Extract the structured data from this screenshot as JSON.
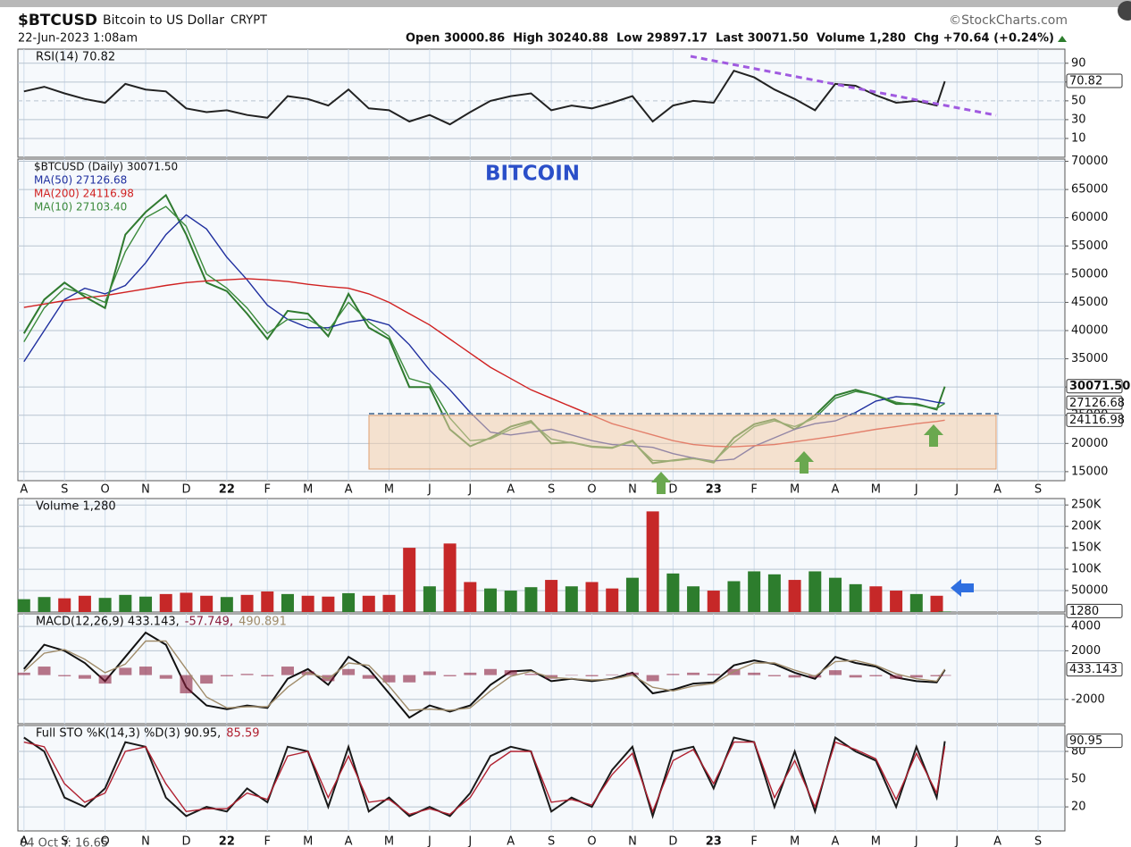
{
  "header": {
    "symbol": "$BTCUSD",
    "name": "Bitcoin to US Dollar",
    "exchange": "CRYPT",
    "brand": "©StockCharts.com",
    "date": "22-Jun-2023 1:08am",
    "quote": "Open 30000.86  High 30240.88  Low 29897.17  Last 30071.50  Volume 1,280  Chg +70.64 (+0.24%)",
    "readout": "04 Oct Y: 16.65"
  },
  "chart_data": [
    {
      "type": "line",
      "xlim": [
        -0.15,
        25.66
      ],
      "ylim": [
        -10,
        105
      ],
      "yticks": [
        10,
        30,
        50,
        70,
        90
      ],
      "x": [
        0,
        0.5,
        1,
        1.5,
        2,
        2.5,
        3,
        3.5,
        4,
        4.5,
        5,
        5.5,
        6,
        6.5,
        7,
        7.5,
        8,
        8.5,
        9,
        9.5,
        10,
        10.5,
        11,
        11.5,
        12,
        12.5,
        13,
        13.5,
        14,
        14.5,
        15,
        15.5,
        16,
        16.5,
        17,
        17.5,
        18,
        18.5,
        19,
        19.5,
        20,
        20.5,
        21,
        21.5,
        22,
        22.5,
        22.7
      ],
      "series": [
        {
          "name": "RSI(14) 70.82",
          "color": "#222222",
          "tag": true,
          "values": [
            60,
            65,
            58,
            52,
            48,
            68,
            62,
            60,
            42,
            38,
            40,
            35,
            32,
            55,
            52,
            45,
            62,
            42,
            40,
            28,
            35,
            25,
            38,
            50,
            55,
            58,
            40,
            45,
            42,
            48,
            55,
            28,
            45,
            50,
            48,
            82,
            75,
            62,
            52,
            40,
            68,
            66,
            56,
            48,
            50,
            45,
            70.82
          ]
        }
      ]
    },
    {
      "type": "line",
      "xlim": [
        -0.15,
        25.66
      ],
      "ylim": [
        13400,
        70400
      ],
      "yticks": [
        15000,
        20000,
        25000,
        30000,
        35000,
        40000,
        45000,
        50000,
        55000,
        60000,
        65000,
        70000
      ],
      "xticks": [
        {
          "value": 0,
          "label": "A"
        },
        {
          "value": 1,
          "label": "S"
        },
        {
          "value": 2,
          "label": "O"
        },
        {
          "value": 3,
          "label": "N"
        },
        {
          "value": 4,
          "label": "D"
        },
        {
          "value": 5,
          "label": "22"
        },
        {
          "value": 6,
          "label": "F"
        },
        {
          "value": 7,
          "label": "M"
        },
        {
          "value": 8,
          "label": "A"
        },
        {
          "value": 9,
          "label": "M"
        },
        {
          "value": 10,
          "label": "J"
        },
        {
          "value": 11,
          "label": "J"
        },
        {
          "value": 12,
          "label": "A"
        },
        {
          "value": 13,
          "label": "S"
        },
        {
          "value": 14,
          "label": "O"
        },
        {
          "value": 15,
          "label": "N"
        },
        {
          "value": 16,
          "label": "D"
        },
        {
          "value": 17,
          "label": "23"
        },
        {
          "value": 18,
          "label": "F"
        },
        {
          "value": 19,
          "label": "M"
        },
        {
          "value": 20,
          "label": "A"
        },
        {
          "value": 21,
          "label": "M"
        },
        {
          "value": 22,
          "label": "J"
        },
        {
          "value": 23,
          "label": "J"
        },
        {
          "value": 24,
          "label": "A"
        },
        {
          "value": 25,
          "label": "S"
        }
      ],
      "annotations": [
        {
          "text": "BITCOIN"
        }
      ],
      "x": [
        0,
        0.5,
        1,
        1.5,
        2,
        2.5,
        3,
        3.5,
        4,
        4.5,
        5,
        5.5,
        6,
        6.5,
        7,
        7.5,
        8,
        8.5,
        9,
        9.5,
        10,
        10.5,
        11,
        11.5,
        12,
        12.5,
        13,
        13.5,
        14,
        14.5,
        15,
        15.5,
        16,
        16.5,
        17,
        17.5,
        18,
        18.5,
        19,
        19.5,
        20,
        20.5,
        21,
        21.5,
        22,
        22.5,
        22.7
      ],
      "series": [
        {
          "name": "$BTCUSD (Daily) 30071.50",
          "color": "#2f7a2f",
          "tag": true,
          "last_label": "30071.50",
          "values": [
            39500,
            45500,
            48500,
            46000,
            44000,
            57000,
            61000,
            64000,
            57000,
            48500,
            47000,
            43000,
            38500,
            43500,
            43000,
            39000,
            46500,
            40500,
            38500,
            30000,
            30000,
            22500,
            19500,
            21000,
            23000,
            24000,
            20000,
            20200,
            19400,
            19200,
            20500,
            16500,
            17000,
            17400,
            16600,
            21000,
            23400,
            24300,
            22500,
            25000,
            28500,
            29500,
            28500,
            27000,
            27000,
            26000,
            30071.5
          ]
        },
        {
          "name": "MA(50) 27126.68",
          "color": "#1f2f9f",
          "tag": true,
          "values": [
            34500,
            40000,
            45500,
            47500,
            46500,
            48000,
            52000,
            57000,
            60500,
            58000,
            53000,
            49000,
            44500,
            42000,
            40500,
            40500,
            41500,
            42000,
            41000,
            37500,
            33000,
            29500,
            25500,
            22000,
            21500,
            22000,
            22500,
            21500,
            20500,
            19800,
            19600,
            19300,
            18200,
            17400,
            16900,
            17200,
            19500,
            21000,
            22500,
            23500,
            24000,
            25500,
            27500,
            28300,
            28000,
            27300,
            27126.68
          ]
        },
        {
          "name": "MA(200) 24116.98",
          "color": "#d02020",
          "tag": true,
          "values": [
            44100,
            44700,
            45300,
            45800,
            46200,
            46800,
            47400,
            48000,
            48500,
            48800,
            49000,
            49200,
            49000,
            48700,
            48200,
            47800,
            47500,
            46500,
            45000,
            43000,
            41000,
            38500,
            36000,
            33500,
            31500,
            29500,
            28000,
            26500,
            25000,
            23500,
            22500,
            21500,
            20500,
            19800,
            19500,
            19400,
            19600,
            19800,
            20300,
            20800,
            21300,
            21900,
            22500,
            23000,
            23500,
            23900,
            24116.98
          ]
        },
        {
          "name": "MA(10) 27103.40",
          "color": "#3b8a3b",
          "values": [
            38000,
            44000,
            47500,
            46500,
            45000,
            54000,
            60000,
            62000,
            58500,
            50000,
            47500,
            44000,
            39500,
            42000,
            42000,
            40000,
            45000,
            41500,
            39000,
            31500,
            30500,
            24500,
            20500,
            20800,
            22500,
            23700,
            20800,
            20100,
            19500,
            19300,
            20300,
            17000,
            16900,
            17300,
            16800,
            20200,
            23000,
            24000,
            23000,
            24500,
            28000,
            29200,
            28600,
            27300,
            26800,
            26200,
            27103.4
          ]
        }
      ]
    },
    {
      "type": "bar",
      "xlim": [
        -0.15,
        25.66
      ],
      "ylim": [
        0,
        265000
      ],
      "yticks": [
        50000,
        {
          "value": 100000,
          "label": "100K"
        },
        {
          "value": 150000,
          "label": "150K"
        },
        {
          "value": 200000,
          "label": "200K"
        },
        {
          "value": 250000,
          "label": "250K"
        }
      ],
      "x": [
        0,
        0.5,
        1,
        1.5,
        2,
        2.5,
        3,
        3.5,
        4,
        4.5,
        5,
        5.5,
        6,
        6.5,
        7,
        7.5,
        8,
        8.5,
        9,
        9.5,
        10,
        10.5,
        11,
        11.5,
        12,
        12.5,
        13,
        13.5,
        14,
        14.5,
        15,
        15.5,
        16,
        16.5,
        17,
        17.5,
        18,
        18.5,
        19,
        19.5,
        20,
        20.5,
        21,
        21.5,
        22,
        22.5,
        22.7
      ],
      "series": [
        {
          "name": "Volume 1,280",
          "color": "#222222",
          "tag": true,
          "colors": [
            "#2d7d2d",
            "#2d7d2d",
            "#c62828",
            "#c62828",
            "#2d7d2d",
            "#2d7d2d",
            "#2d7d2d",
            "#c62828",
            "#c62828",
            "#c62828",
            "#2d7d2d",
            "#c62828",
            "#c62828",
            "#2d7d2d",
            "#c62828",
            "#c62828",
            "#2d7d2d",
            "#c62828",
            "#c62828",
            "#c62828",
            "#2d7d2d",
            "#c62828",
            "#c62828",
            "#2d7d2d",
            "#2d7d2d",
            "#2d7d2d",
            "#c62828",
            "#2d7d2d",
            "#c62828",
            "#c62828",
            "#2d7d2d",
            "#c62828",
            "#2d7d2d",
            "#2d7d2d",
            "#c62828",
            "#2d7d2d",
            "#2d7d2d",
            "#2d7d2d",
            "#c62828",
            "#2d7d2d",
            "#2d7d2d",
            "#2d7d2d",
            "#c62828",
            "#c62828",
            "#2d7d2d",
            "#c62828",
            "#2d7d2d"
          ],
          "values": [
            30000,
            35000,
            32000,
            38000,
            33000,
            40000,
            36000,
            42000,
            45000,
            38000,
            35000,
            40000,
            48000,
            42000,
            38000,
            36000,
            44000,
            38000,
            40000,
            150000,
            60000,
            160000,
            70000,
            55000,
            50000,
            58000,
            75000,
            60000,
            70000,
            55000,
            80000,
            235000,
            90000,
            60000,
            50000,
            72000,
            95000,
            88000,
            75000,
            95000,
            80000,
            65000,
            60000,
            50000,
            42000,
            38000,
            1280
          ]
        }
      ]
    },
    {
      "type": "line",
      "xlim": [
        -0.15,
        25.66
      ],
      "ylim": [
        -4000,
        5040
      ],
      "yticks": [
        -2000,
        2000,
        4000
      ],
      "x": [
        0,
        0.5,
        1,
        1.5,
        2,
        2.5,
        3,
        3.5,
        4,
        4.5,
        5,
        5.5,
        6,
        6.5,
        7,
        7.5,
        8,
        8.5,
        9,
        9.5,
        10,
        10.5,
        11,
        11.5,
        12,
        12.5,
        13,
        13.5,
        14,
        14.5,
        15,
        15.5,
        16,
        16.5,
        17,
        17.5,
        18,
        18.5,
        19,
        19.5,
        20,
        20.5,
        21,
        21.5,
        22,
        22.5,
        22.7
      ],
      "series": [
        {
          "name": "MACD(12,26,9) 433.143,",
          "color": "#111111",
          "tag": true,
          "values": [
            500,
            2500,
            2000,
            1000,
            -500,
            1500,
            3500,
            2500,
            -1000,
            -2500,
            -2800,
            -2500,
            -2700,
            -300,
            500,
            -800,
            1500,
            500,
            -1500,
            -3500,
            -2500,
            -3000,
            -2500,
            -800,
            300,
            400,
            -500,
            -300,
            -500,
            -300,
            200,
            -1500,
            -1200,
            -700,
            -600,
            800,
            1200,
            900,
            200,
            -300,
            1500,
            1000,
            700,
            -200,
            -500,
            -600,
            433.143
          ]
        },
        {
          "name": "-57.749,",
          "color": "#8a1c3c",
          "histogram": true,
          "values": [
            200,
            700,
            -100,
            -300,
            -700,
            600,
            700,
            -300,
            -1500,
            -700,
            -100,
            100,
            -100,
            700,
            300,
            -500,
            500,
            -300,
            -600,
            -600,
            300,
            -100,
            200,
            500,
            400,
            100,
            -300,
            0,
            -100,
            50,
            200,
            -500,
            100,
            200,
            100,
            500,
            200,
            -100,
            -200,
            -200,
            400,
            -200,
            -100,
            -300,
            -200,
            -100,
            -57.749
          ]
        },
        {
          "name": "490.891",
          "color": "#a08c6a",
          "values": [
            300,
            1800,
            2100,
            1300,
            200,
            900,
            2800,
            2800,
            500,
            -1800,
            -2700,
            -2600,
            -2600,
            -1000,
            200,
            -300,
            1000,
            800,
            -900,
            -2900,
            -2800,
            -2900,
            -2700,
            -1300,
            -100,
            300,
            -200,
            -300,
            -400,
            -350,
            0,
            -1000,
            -1300,
            -900,
            -700,
            300,
            1000,
            1000,
            400,
            -100,
            1100,
            1200,
            800,
            100,
            -300,
            -500,
            490.891
          ]
        }
      ]
    },
    {
      "type": "line",
      "xlim": [
        -0.15,
        25.66
      ],
      "ylim": [
        -6,
        108
      ],
      "yticks": [
        20,
        50,
        80
      ],
      "x": [
        0,
        0.5,
        1,
        1.5,
        2,
        2.5,
        3,
        3.5,
        4,
        4.5,
        5,
        5.5,
        6,
        6.5,
        7,
        7.5,
        8,
        8.5,
        9,
        9.5,
        10,
        10.5,
        11,
        11.5,
        12,
        12.5,
        13,
        13.5,
        14,
        14.5,
        15,
        15.5,
        16,
        16.5,
        17,
        17.5,
        18,
        18.5,
        19,
        19.5,
        20,
        20.5,
        21,
        21.5,
        22,
        22.5,
        22.7
      ],
      "series": [
        {
          "name": "Full STO %K(14,3) %D(3) 90.95,",
          "color": "#1a1a1a",
          "tag": true,
          "values": [
            95,
            80,
            30,
            20,
            40,
            90,
            85,
            30,
            10,
            20,
            15,
            40,
            25,
            85,
            80,
            20,
            85,
            15,
            30,
            10,
            20,
            10,
            35,
            75,
            85,
            80,
            15,
            30,
            20,
            60,
            85,
            10,
            80,
            85,
            40,
            95,
            90,
            20,
            80,
            15,
            95,
            80,
            70,
            20,
            85,
            30,
            90.95
          ]
        },
        {
          "name": "85.59",
          "color": "#b02030",
          "values": [
            90,
            85,
            45,
            25,
            35,
            80,
            85,
            45,
            15,
            18,
            18,
            35,
            28,
            75,
            80,
            30,
            75,
            25,
            28,
            12,
            18,
            12,
            30,
            65,
            80,
            80,
            25,
            28,
            22,
            55,
            78,
            15,
            70,
            82,
            45,
            90,
            90,
            30,
            70,
            20,
            90,
            82,
            72,
            28,
            78,
            35,
            85.59
          ]
        }
      ]
    }
  ]
}
